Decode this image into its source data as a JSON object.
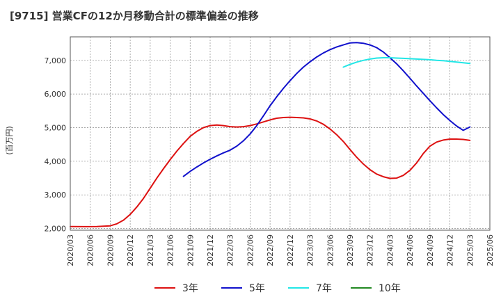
{
  "title": "[9715]  営業CFの12か月移動合計の標準偏差の推移",
  "chart_data": {
    "type": "line",
    "ylabel": "(百万円)",
    "ylim": [
      1950,
      7700
    ],
    "yticks": [
      2000,
      3000,
      4000,
      5000,
      6000,
      7000
    ],
    "ytick_labels": [
      "2,000",
      "3,000",
      "4,000",
      "5,000",
      "6,000",
      "7,000"
    ],
    "xticks": [
      "2020/03",
      "2020/06",
      "2020/09",
      "2020/12",
      "2021/03",
      "2021/06",
      "2021/09",
      "2021/12",
      "2022/03",
      "2022/06",
      "2022/09",
      "2022/12",
      "2023/03",
      "2023/06",
      "2023/09",
      "2023/12",
      "2024/03",
      "2024/06",
      "2024/09",
      "2024/12",
      "2025/03",
      "2025/06"
    ],
    "grid": true,
    "legend_position": "bottom",
    "series": [
      {
        "name": "3年",
        "color": "#dd1111",
        "points": [
          [
            "2020/03",
            2060
          ],
          [
            "2020/05",
            2055
          ],
          [
            "2020/07",
            2060
          ],
          [
            "2020/09",
            2080
          ],
          [
            "2020/10",
            2140
          ],
          [
            "2020/11",
            2250
          ],
          [
            "2020/12",
            2420
          ],
          [
            "2021/01",
            2640
          ],
          [
            "2021/02",
            2900
          ],
          [
            "2021/03",
            3200
          ],
          [
            "2021/04",
            3500
          ],
          [
            "2021/05",
            3780
          ],
          [
            "2021/06",
            4050
          ],
          [
            "2021/07",
            4300
          ],
          [
            "2021/08",
            4530
          ],
          [
            "2021/09",
            4740
          ],
          [
            "2021/10",
            4890
          ],
          [
            "2021/11",
            5000
          ],
          [
            "2021/12",
            5060
          ],
          [
            "2022/01",
            5080
          ],
          [
            "2022/02",
            5060
          ],
          [
            "2022/03",
            5030
          ],
          [
            "2022/04",
            5020
          ],
          [
            "2022/05",
            5030
          ],
          [
            "2022/06",
            5060
          ],
          [
            "2022/07",
            5110
          ],
          [
            "2022/08",
            5170
          ],
          [
            "2022/09",
            5230
          ],
          [
            "2022/10",
            5280
          ],
          [
            "2022/11",
            5300
          ],
          [
            "2022/12",
            5310
          ],
          [
            "2023/01",
            5300
          ],
          [
            "2023/02",
            5290
          ],
          [
            "2023/03",
            5260
          ],
          [
            "2023/04",
            5200
          ],
          [
            "2023/05",
            5100
          ],
          [
            "2023/06",
            4960
          ],
          [
            "2023/07",
            4790
          ],
          [
            "2023/08",
            4590
          ],
          [
            "2023/09",
            4350
          ],
          [
            "2023/10",
            4120
          ],
          [
            "2023/11",
            3920
          ],
          [
            "2023/12",
            3750
          ],
          [
            "2024/01",
            3620
          ],
          [
            "2024/02",
            3540
          ],
          [
            "2024/03",
            3490
          ],
          [
            "2024/04",
            3500
          ],
          [
            "2024/05",
            3580
          ],
          [
            "2024/06",
            3730
          ],
          [
            "2024/07",
            3950
          ],
          [
            "2024/08",
            4230
          ],
          [
            "2024/09",
            4450
          ],
          [
            "2024/10",
            4570
          ],
          [
            "2024/11",
            4630
          ],
          [
            "2024/12",
            4660
          ],
          [
            "2025/01",
            4660
          ],
          [
            "2025/02",
            4650
          ],
          [
            "2025/03",
            4620
          ]
        ]
      },
      {
        "name": "5年",
        "color": "#1111cc",
        "points": [
          [
            "2021/08",
            3550
          ],
          [
            "2021/09",
            3700
          ],
          [
            "2021/10",
            3830
          ],
          [
            "2021/11",
            3950
          ],
          [
            "2021/12",
            4060
          ],
          [
            "2022/01",
            4160
          ],
          [
            "2022/02",
            4250
          ],
          [
            "2022/03",
            4330
          ],
          [
            "2022/04",
            4450
          ],
          [
            "2022/05",
            4610
          ],
          [
            "2022/06",
            4810
          ],
          [
            "2022/07",
            5060
          ],
          [
            "2022/08",
            5350
          ],
          [
            "2022/09",
            5650
          ],
          [
            "2022/10",
            5920
          ],
          [
            "2022/11",
            6170
          ],
          [
            "2022/12",
            6400
          ],
          [
            "2022/13",
            6400
          ],
          [
            "2023/01",
            6610
          ],
          [
            "2023/02",
            6800
          ],
          [
            "2023/03",
            6960
          ],
          [
            "2023/04",
            7100
          ],
          [
            "2023/05",
            7220
          ],
          [
            "2023/06",
            7320
          ],
          [
            "2023/07",
            7400
          ],
          [
            "2023/08",
            7460
          ],
          [
            "2023/09",
            7520
          ],
          [
            "2023/10",
            7530
          ],
          [
            "2023/11",
            7510
          ],
          [
            "2023/12",
            7460
          ],
          [
            "2024/01",
            7380
          ],
          [
            "2024/02",
            7250
          ],
          [
            "2024/03",
            7080
          ],
          [
            "2024/04",
            6900
          ],
          [
            "2024/05",
            6690
          ],
          [
            "2024/06",
            6470
          ],
          [
            "2024/07",
            6240
          ],
          [
            "2024/08",
            6020
          ],
          [
            "2024/09",
            5800
          ],
          [
            "2024/10",
            5590
          ],
          [
            "2024/11",
            5390
          ],
          [
            "2024/12",
            5210
          ],
          [
            "2025/01",
            5050
          ],
          [
            "2025/02",
            4920
          ],
          [
            "2025/03",
            5020
          ]
        ]
      },
      {
        "name": "7年",
        "color": "#22e6e6",
        "points": [
          [
            "2023/08",
            6800
          ],
          [
            "2023/09",
            6880
          ],
          [
            "2023/10",
            6950
          ],
          [
            "2023/11",
            7000
          ],
          [
            "2023/12",
            7040
          ],
          [
            "2024/01",
            7070
          ],
          [
            "2024/02",
            7080
          ],
          [
            "2024/03",
            7080
          ],
          [
            "2024/04",
            7070
          ],
          [
            "2024/05",
            7060
          ],
          [
            "2024/06",
            7050
          ],
          [
            "2024/07",
            7040
          ],
          [
            "2024/08",
            7030
          ],
          [
            "2024/09",
            7020
          ],
          [
            "2024/10",
            7000
          ],
          [
            "2024/11",
            6990
          ],
          [
            "2024/12",
            6970
          ],
          [
            "2025/01",
            6950
          ],
          [
            "2025/02",
            6930
          ],
          [
            "2025/03",
            6910
          ]
        ]
      },
      {
        "name": "10年",
        "color": "#228822",
        "points": []
      }
    ]
  }
}
